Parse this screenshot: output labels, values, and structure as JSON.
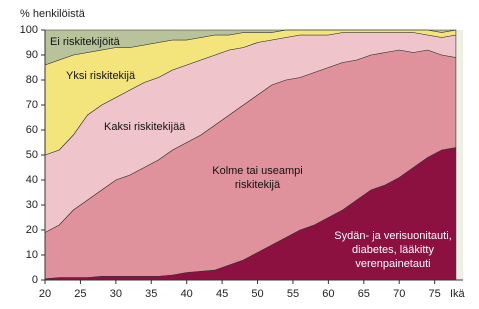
{
  "chart_data": {
    "type": "stacked_area",
    "y_label": "% henkilöistä",
    "x_label": "Ikä",
    "x": [
      20,
      22,
      24,
      26,
      28,
      30,
      32,
      34,
      36,
      38,
      40,
      42,
      44,
      46,
      48,
      50,
      52,
      54,
      56,
      58,
      60,
      62,
      64,
      66,
      68,
      70,
      72,
      74,
      76,
      78
    ],
    "series": [
      {
        "name": "Sydän- ja verisuonitauti, diabetes, lääkitty verenpainetauti",
        "color": "#8c1040",
        "values": [
          0.5,
          1,
          1,
          1,
          1.5,
          1.5,
          1.5,
          1.5,
          1.5,
          2,
          3,
          3.5,
          4,
          6,
          8,
          11,
          14,
          17,
          20,
          22,
          25,
          28,
          32,
          36,
          38,
          41,
          45,
          49,
          52,
          53
        ]
      },
      {
        "name": "Kolme tai useampi riskitekijä",
        "color": "#df929c",
        "values": [
          18.5,
          21,
          27,
          31,
          34.5,
          38.5,
          40.5,
          43.5,
          46.5,
          50,
          52,
          54.5,
          58,
          60,
          62,
          63,
          64,
          63,
          61,
          61,
          60,
          59,
          56,
          54,
          53,
          51,
          46,
          43,
          38,
          36
        ]
      },
      {
        "name": "Kaksi riskitekijää",
        "color": "#efc5cb",
        "values": [
          31,
          30,
          30,
          34,
          34,
          33,
          34,
          34,
          33,
          32,
          31,
          30,
          28,
          26,
          23,
          21,
          18,
          17,
          17,
          15,
          13,
          12,
          11,
          9,
          8,
          7,
          8,
          6,
          7,
          9
        ]
      },
      {
        "name": "Yksi riskitekijä",
        "color": "#f3e57c",
        "values": [
          36,
          36,
          32,
          25,
          22,
          20,
          17,
          15,
          14,
          12,
          10,
          9,
          8,
          6,
          6,
          4,
          3,
          3,
          2,
          2,
          2,
          1,
          1,
          1,
          1,
          1,
          1,
          2,
          2,
          2
        ]
      },
      {
        "name": "Ei riskitekijöitä",
        "color": "#b9c39b",
        "values": [
          14,
          12,
          10,
          9,
          8,
          7,
          7,
          6,
          5,
          4,
          4,
          3,
          2,
          2,
          1,
          1,
          1,
          0,
          0,
          0,
          0,
          0,
          0,
          0,
          0,
          0,
          0,
          0,
          1,
          0
        ]
      }
    ],
    "xlim": [
      20,
      79
    ],
    "xticks": [
      20,
      25,
      30,
      35,
      40,
      45,
      50,
      55,
      60,
      65,
      70,
      75
    ],
    "ylim": [
      0,
      100
    ],
    "yticks": [
      0,
      10,
      20,
      30,
      40,
      50,
      60,
      70,
      80,
      90,
      100
    ]
  }
}
